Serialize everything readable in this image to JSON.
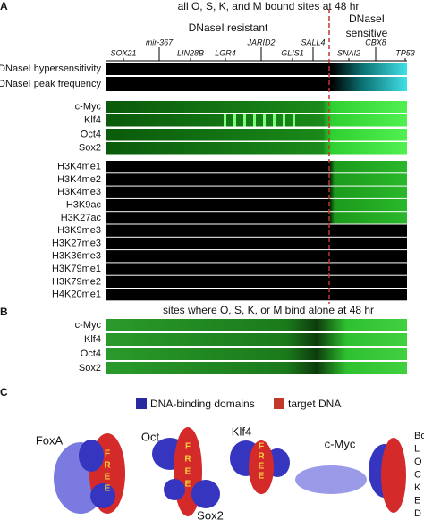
{
  "panel_a": {
    "label": "A",
    "title": "all O, S, K, and M bound sites at 48 hr",
    "region_left": "DNaseI resistant",
    "region_right": [
      "DNaseI",
      "sensitive"
    ],
    "genes": [
      "SOX21",
      "mir-367",
      "LIN28B",
      "LGR4",
      "JARID2",
      "GLIS1",
      "SALL4",
      "SNAI2",
      "CBX8",
      "TP53"
    ],
    "dnase_tracks": [
      "DNaseI hypersensitivity",
      "DNaseI peak frequency"
    ],
    "factor_tracks": [
      "c-Myc",
      "Klf4",
      "Oct4",
      "Sox2"
    ],
    "histone_tracks": [
      "H3K4me1",
      "H3K4me2",
      "H3K4me3",
      "H3K9ac",
      "H3K27ac",
      "H3K9me3",
      "H3K27me3",
      "H3K36me3",
      "H3K79me1",
      "H3K79me2",
      "H4K20me1"
    ]
  },
  "panel_b": {
    "label": "B",
    "title": "sites where O, S, K, or M bind alone at 48 hr",
    "tracks": [
      "c-Myc",
      "Klf4",
      "Oct4",
      "Sox2"
    ]
  },
  "panel_c": {
    "label": "C",
    "legend": [
      "DNA-binding domains",
      "target DNA"
    ],
    "proteins": [
      "FoxA",
      "Oct",
      "Klf4",
      "c-Myc",
      "Sox2"
    ],
    "free_letters": [
      "F",
      "R",
      "E",
      "E"
    ],
    "side_list": [
      "Bo",
      "L",
      "O",
      "C",
      "K",
      "E",
      "D"
    ]
  }
}
